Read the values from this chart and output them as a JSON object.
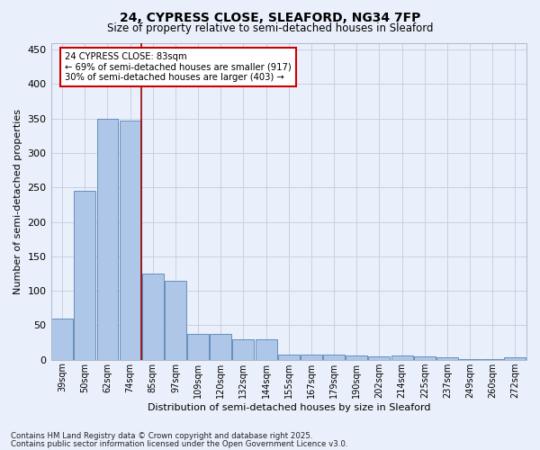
{
  "title1": "24, CYPRESS CLOSE, SLEAFORD, NG34 7FP",
  "title2": "Size of property relative to semi-detached houses in Sleaford",
  "xlabel": "Distribution of semi-detached houses by size in Sleaford",
  "ylabel": "Number of semi-detached properties",
  "categories": [
    "39sqm",
    "50sqm",
    "62sqm",
    "74sqm",
    "85sqm",
    "97sqm",
    "109sqm",
    "120sqm",
    "132sqm",
    "144sqm",
    "155sqm",
    "167sqm",
    "179sqm",
    "190sqm",
    "202sqm",
    "214sqm",
    "225sqm",
    "237sqm",
    "249sqm",
    "260sqm",
    "272sqm"
  ],
  "values": [
    60,
    245,
    350,
    347,
    125,
    115,
    38,
    38,
    30,
    30,
    7,
    7,
    7,
    6,
    5,
    6,
    5,
    4,
    1,
    1,
    3
  ],
  "bar_color": "#aec6e8",
  "bar_edge_color": "#5585b5",
  "background_color": "#eaf0fb",
  "grid_color": "#c8d0e0",
  "red_line_x": 3.5,
  "annotation_title": "24 CYPRESS CLOSE: 83sqm",
  "annotation_line1": "← 69% of semi-detached houses are smaller (917)",
  "annotation_line2": "30% of semi-detached houses are larger (403) →",
  "annotation_box_color": "#ffffff",
  "annotation_box_edge": "#cc0000",
  "red_line_color": "#990000",
  "ylim": [
    0,
    460
  ],
  "yticks": [
    0,
    50,
    100,
    150,
    200,
    250,
    300,
    350,
    400,
    450
  ],
  "footnote1": "Contains HM Land Registry data © Crown copyright and database right 2025.",
  "footnote2": "Contains public sector information licensed under the Open Government Licence v3.0."
}
